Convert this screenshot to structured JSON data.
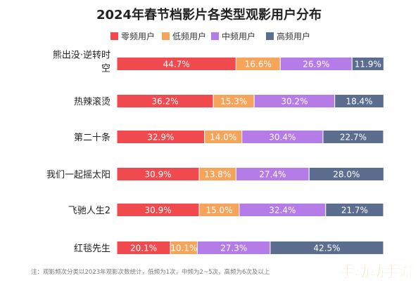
{
  "chart_data": {
    "type": "bar",
    "stacked": true,
    "orientation": "horizontal",
    "percent_stacked": true,
    "title": "2024年春节档影片各类型观影用户分布",
    "legend_position": "top",
    "categories": [
      "熊出没·逆转时空",
      "热辣滚烫",
      "第二十条",
      "我们一起摇太阳",
      "飞驰人生2",
      "红毯先生"
    ],
    "category_label_lines": [
      [
        "熊出没·逆转时",
        "空"
      ],
      [
        "热辣滚烫"
      ],
      [
        "第二十条"
      ],
      [
        "我们一起摇太阳"
      ],
      [
        "飞驰人生2"
      ],
      [
        "红毯先生"
      ]
    ],
    "series": [
      {
        "name": "零频用户",
        "color": "#f04a4e",
        "values": [
          44.7,
          36.2,
          32.9,
          30.9,
          30.9,
          20.1
        ],
        "labels": [
          "44.7%",
          "36.2%",
          "32.9%",
          "30.9%",
          "30.9%",
          "20.1%"
        ]
      },
      {
        "name": "低频用户",
        "color": "#f5a45a",
        "values": [
          16.6,
          15.3,
          14.0,
          13.8,
          15.0,
          10.1
        ],
        "labels": [
          "16.6%",
          "15.3%",
          "14.0%",
          "13.8%",
          "15.0%",
          "10.1%"
        ]
      },
      {
        "name": "中频用户",
        "color": "#b57be6",
        "values": [
          26.9,
          30.2,
          30.4,
          27.4,
          32.4,
          27.3
        ],
        "labels": [
          "26.9%",
          "30.2%",
          "30.4%",
          "27.4%",
          "32.4%",
          "27.3%"
        ]
      },
      {
        "name": "高频用户",
        "color": "#5c6e8f",
        "values": [
          11.9,
          18.4,
          22.7,
          28.0,
          21.7,
          42.5
        ],
        "labels": [
          "11.9%",
          "18.4%",
          "22.7%",
          "28.0%",
          "21.7%",
          "42.5%"
        ]
      }
    ],
    "xlim": [
      0,
      100
    ],
    "grid": false,
    "footnote": "注：观影频次分类以2023年观影次数统计，低频为1次，中频为2~5次，高频为6次及以上"
  },
  "watermark": {
    "text": "手动动手游",
    "color": "#f39a1e"
  }
}
